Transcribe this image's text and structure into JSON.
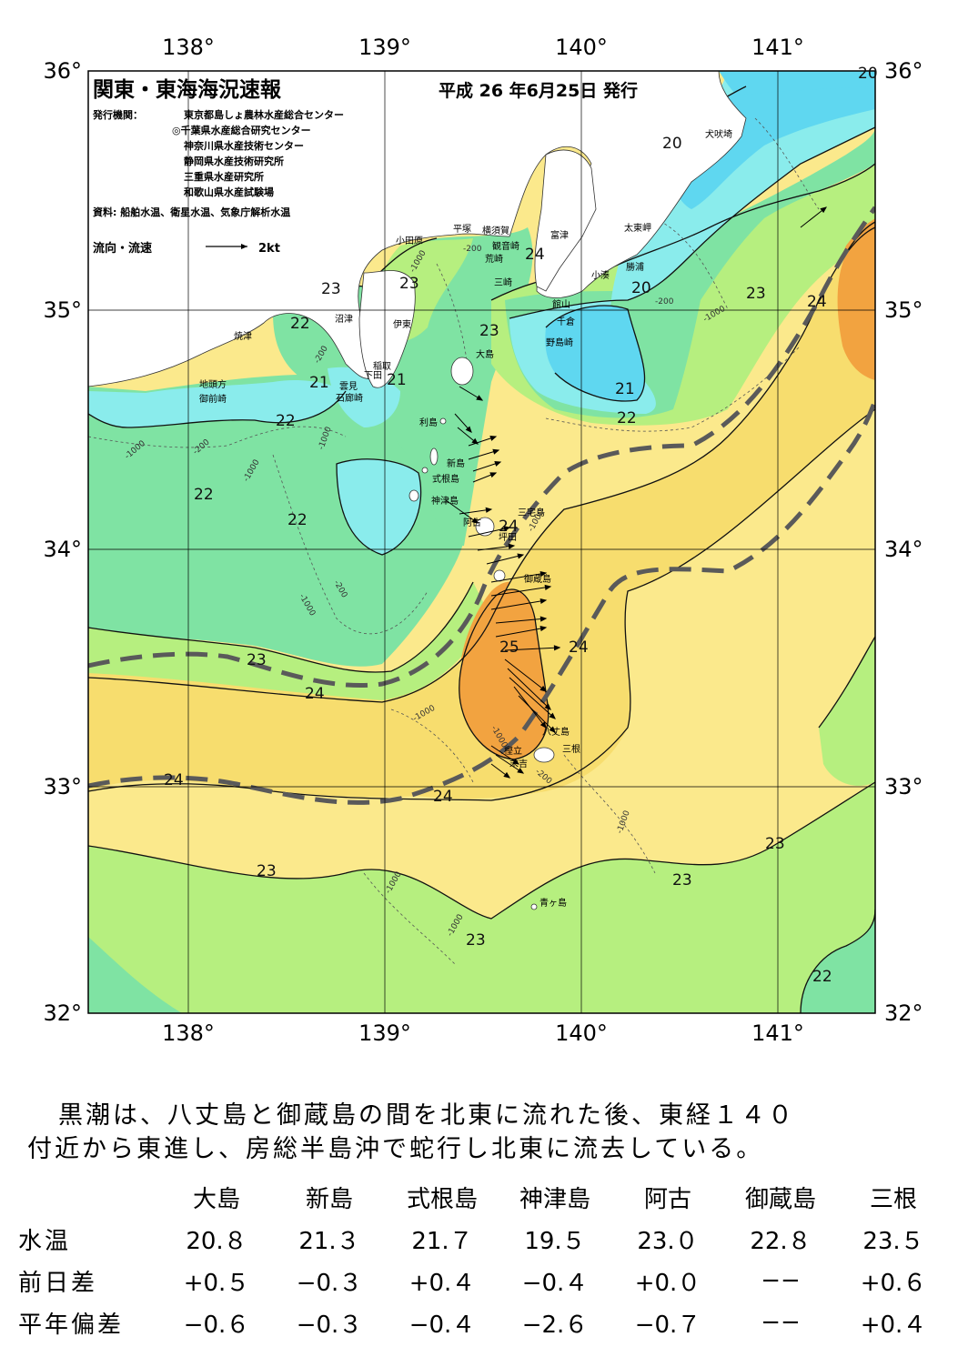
{
  "title": "関東・東海海況速報",
  "issue_date": "平成 26 年6月25日 発行",
  "issuers_label": "発行機関：",
  "issuers": [
    "東京都島しょ農林水産総合センター",
    "◎千葉県水産総合研究センター",
    "神奈川県水産技術センター",
    "静岡県水産技術研究所",
    "三重県水産研究所",
    "和歌山県水産試験場"
  ],
  "source": "資料: 船舶水温、衛星水温、気象庁解析水温",
  "current_legend": {
    "label": "流向・流速",
    "scale": "2kt"
  },
  "axes": {
    "lon_top": [
      "138°",
      "139°",
      "140°",
      "141°"
    ],
    "lon_bottom": [
      "138°",
      "139°",
      "140°",
      "141°"
    ],
    "lat_left": [
      "36°",
      "35°",
      "34°",
      "33°",
      "32°"
    ],
    "lat_right": [
      "36°",
      "35°",
      "34°",
      "33°",
      "32°"
    ]
  },
  "colors": {
    "t20": "#5fd7f0",
    "t21": "#8aecec",
    "t22": "#7fe3a3",
    "t23": "#b6ef7f",
    "t24": "#f7dd6e",
    "t24b": "#fbe98c",
    "t25": "#f2a340",
    "land": "#ffffff",
    "kuroshio_axis": "#5a5a5a"
  },
  "isotherm_labels": [
    "20",
    "20",
    "20",
    "20",
    "21",
    "21",
    "21",
    "22",
    "22",
    "22",
    "22",
    "22",
    "22",
    "23",
    "23",
    "23",
    "23",
    "23",
    "23",
    "23",
    "23",
    "23",
    "23",
    "24",
    "24",
    "24",
    "24",
    "24",
    "24",
    "24",
    "24",
    "25"
  ],
  "place_names": [
    "犬吠埼",
    "太東岬",
    "勝浦",
    "小湊",
    "富津",
    "横須賀",
    "観音崎",
    "荒崎",
    "三崎",
    "平塚",
    "小田原",
    "館山",
    "千倉",
    "野島崎",
    "大島",
    "伊東",
    "沼津",
    "稲取",
    "下田",
    "雲見",
    "石廊崎",
    "焼津",
    "地頭方",
    "御前崎",
    "利島",
    "新島",
    "式根島",
    "神津島",
    "三宅島",
    "阿古",
    "坪田",
    "御蔵島",
    "八丈島",
    "三根",
    "樫立",
    "末吉",
    "青ヶ島"
  ],
  "depth_labels": [
    "-200",
    "-1000"
  ],
  "summary_lines": [
    "黒潮は、八丈島と御蔵島の間を北東に流れた後、東経１４０",
    "付近から東進し、房総半島沖で蛇行し北東に流去している。"
  ],
  "obs_table": {
    "stations": [
      "大島",
      "新島",
      "式根島",
      "神津島",
      "阿古",
      "御蔵島",
      "三根"
    ],
    "rows": [
      {
        "label": "水温",
        "values": [
          "20.８",
          "21.３",
          "21.７",
          "19.５",
          "23.０",
          "22.８",
          "23.５"
        ]
      },
      {
        "label": "前日差",
        "values": [
          "+0.５",
          "−0.３",
          "+0.４",
          "−0.４",
          "+0.０",
          "−−",
          "+0.６"
        ]
      },
      {
        "label": "平年偏差",
        "values": [
          "−0.６",
          "−0.３",
          "−0.４",
          "−2.６",
          "−0.７",
          "−−",
          "+0.４"
        ]
      }
    ]
  }
}
